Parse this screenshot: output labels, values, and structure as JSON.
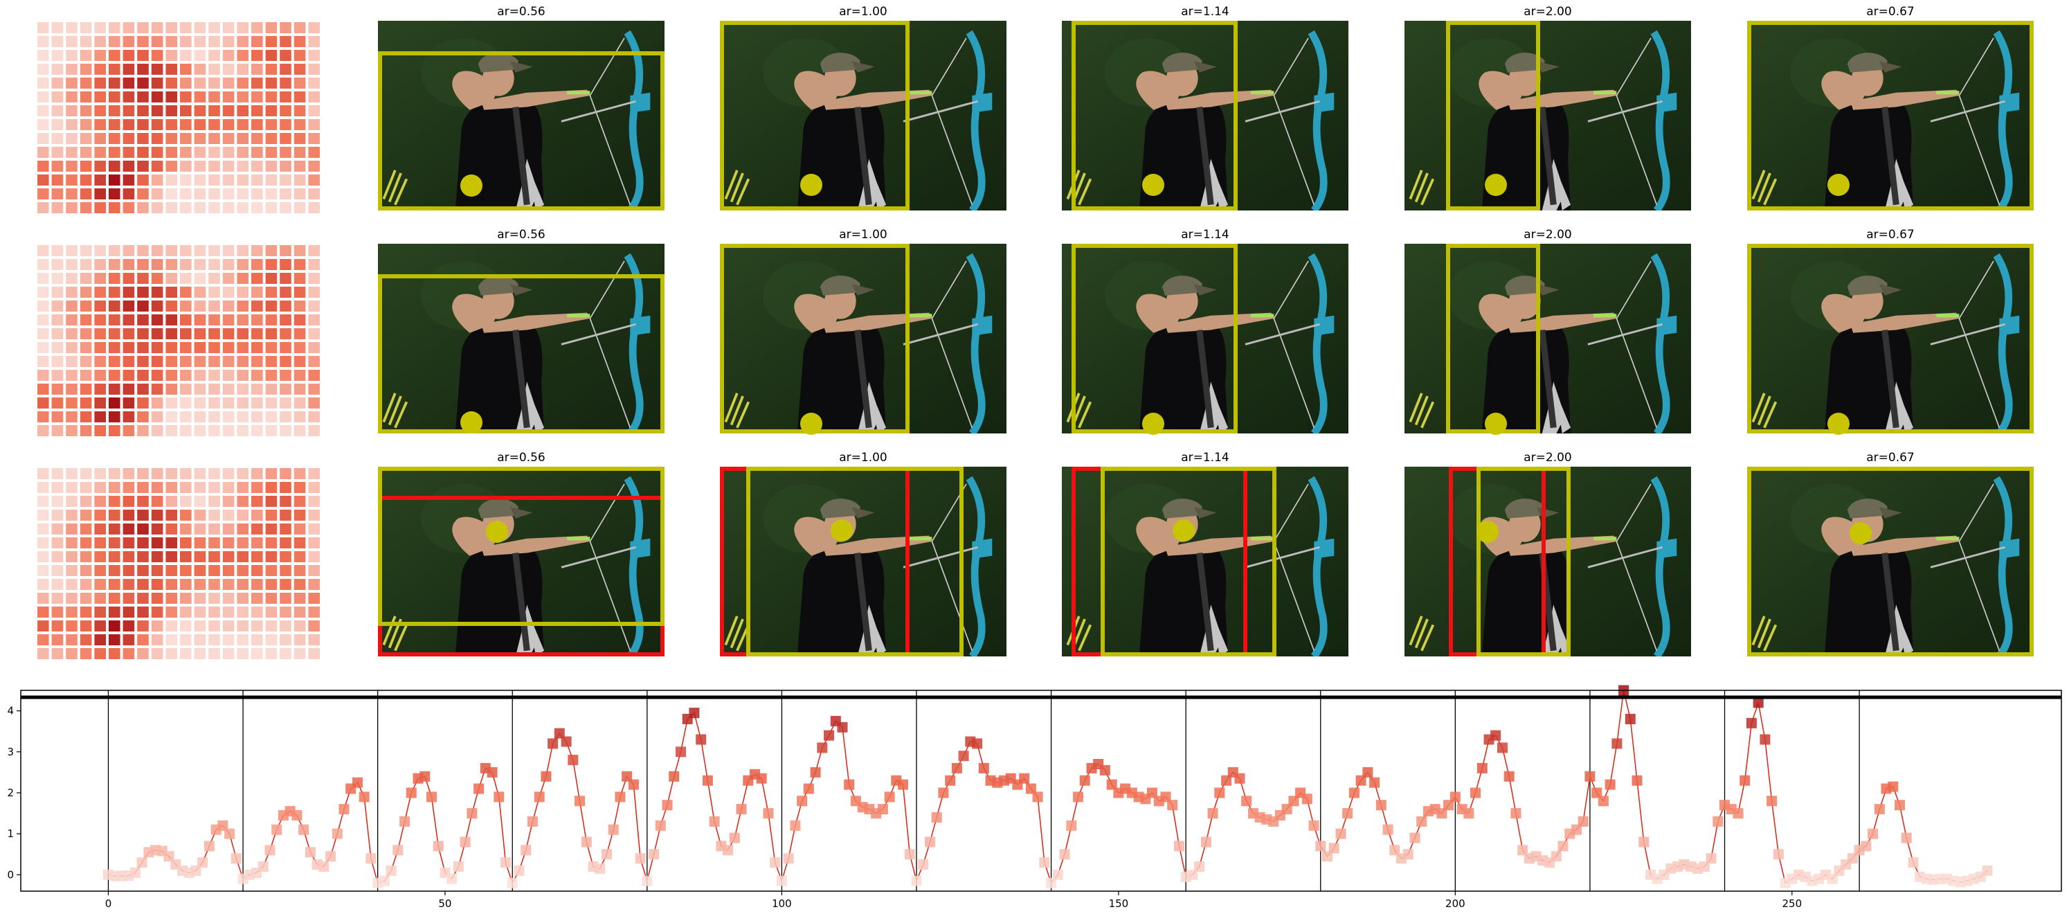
{
  "panel_titles": [
    "ar=0.56",
    "ar=1.00",
    "ar=1.14",
    "ar=2.00",
    "ar=0.67"
  ],
  "colors": {
    "bbox_pred": "#bfbf00",
    "bbox_gt": "#ee1111",
    "point": "#c9c400",
    "line": "#d7301f",
    "heat_low": "#fbe9e4",
    "heat_high": "#a50f15",
    "photo_bg": "#1f3318"
  },
  "chart_data": {
    "type": "line",
    "title": "",
    "xlabel": "",
    "ylabel": "",
    "xlim": [
      -13,
      290
    ],
    "ylim": [
      -0.4,
      4.5
    ],
    "xticks": [
      0,
      50,
      100,
      150,
      200,
      250
    ],
    "yticks": [
      0,
      1,
      2,
      3,
      4
    ],
    "segment_boundaries": [
      0,
      20,
      40,
      60,
      80,
      100,
      120,
      140,
      160,
      180,
      200,
      220,
      240,
      260
    ],
    "series": [
      {
        "values": [
          0.0,
          -0.03,
          -0.03,
          -0.02,
          0.05,
          0.3,
          0.55,
          0.6,
          0.58,
          0.45,
          0.25,
          0.1,
          0.05,
          0.1,
          0.3,
          0.7,
          1.1,
          1.2,
          1.0,
          0.4,
          -0.1,
          0.0,
          0.05,
          0.2,
          0.6,
          1.1,
          1.45,
          1.55,
          1.45,
          1.1,
          0.55,
          0.25,
          0.2,
          0.45,
          1.0,
          1.6,
          2.1,
          2.25,
          1.9,
          0.4,
          -0.2,
          -0.15,
          0.1,
          0.6,
          1.3,
          2.0,
          2.35,
          2.4,
          1.9,
          0.7,
          0.05,
          -0.1,
          0.2,
          0.8,
          1.5,
          2.1,
          2.6,
          2.5,
          1.9,
          0.3,
          -0.2,
          0.1,
          0.6,
          1.3,
          1.9,
          2.4,
          3.2,
          3.45,
          3.25,
          2.8,
          1.8,
          0.8,
          0.2,
          0.15,
          0.5,
          1.1,
          1.9,
          2.4,
          2.2,
          0.4,
          -0.15,
          0.5,
          1.2,
          1.7,
          2.4,
          3.0,
          3.8,
          3.95,
          3.3,
          2.3,
          1.3,
          0.7,
          0.6,
          0.9,
          1.6,
          2.3,
          2.45,
          2.35,
          1.5,
          0.3,
          -0.15,
          0.4,
          1.2,
          1.8,
          2.1,
          2.5,
          3.1,
          3.4,
          3.75,
          3.6,
          2.2,
          1.8,
          1.65,
          1.6,
          1.5,
          1.6,
          1.9,
          2.3,
          2.2,
          0.5,
          -0.15,
          0.25,
          0.8,
          1.4,
          2.0,
          2.3,
          2.6,
          2.9,
          3.25,
          3.2,
          2.6,
          2.3,
          2.25,
          2.3,
          2.35,
          2.2,
          2.35,
          2.1,
          1.9,
          0.3,
          -0.2,
          0.0,
          0.5,
          1.2,
          1.9,
          2.3,
          2.6,
          2.7,
          2.55,
          2.2,
          2.0,
          2.1,
          2.0,
          1.9,
          1.85,
          2.0,
          1.8,
          1.9,
          1.7,
          0.7,
          -0.05,
          0.0,
          0.2,
          0.8,
          1.5,
          2.0,
          2.3,
          2.5,
          2.35,
          1.8,
          1.5,
          1.4,
          1.35,
          1.3,
          1.45,
          1.6,
          1.8,
          2.0,
          1.85,
          1.2,
          0.7,
          0.45,
          0.65,
          1.0,
          1.5,
          2.0,
          2.3,
          2.5,
          2.25,
          1.7,
          1.1,
          0.6,
          0.4,
          0.5,
          0.9,
          1.3,
          1.55,
          1.6,
          1.5,
          1.7,
          1.9,
          1.6,
          1.5,
          2.0,
          2.6,
          3.3,
          3.4,
          3.1,
          2.4,
          1.5,
          0.6,
          0.4,
          0.45,
          0.35,
          0.3,
          0.45,
          0.7,
          1.0,
          1.1,
          1.3,
          2.4,
          2.0,
          1.8,
          2.2,
          3.2,
          4.5,
          3.8,
          2.3,
          0.8,
          0.0,
          -0.1,
          0.0,
          0.15,
          0.2,
          0.25,
          0.2,
          0.15,
          0.2,
          0.4,
          1.3,
          1.7,
          1.6,
          1.5,
          2.3,
          3.7,
          4.2,
          3.3,
          1.8,
          0.5,
          -0.2,
          -0.1,
          0.0,
          -0.05,
          -0.15,
          -0.1,
          0.0,
          -0.1,
          0.1,
          0.25,
          0.4,
          0.6,
          0.7,
          1.0,
          1.6,
          2.1,
          2.15,
          1.7,
          0.9,
          0.3,
          -0.05,
          -0.1,
          -0.12,
          -0.1,
          -0.1,
          -0.15,
          -0.18,
          -0.15,
          -0.1,
          -0.05,
          0.1
        ]
      }
    ]
  }
}
